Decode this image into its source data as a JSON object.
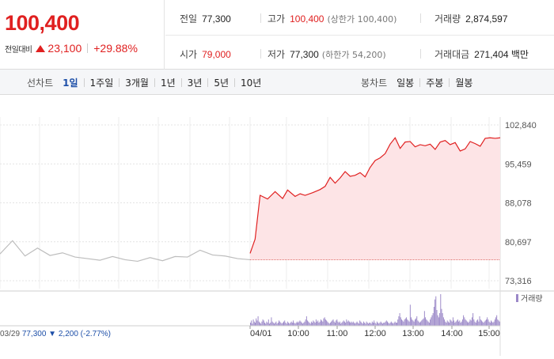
{
  "quote": {
    "price": "100,400",
    "diff_label": "전일대비",
    "diff_value": "23,100",
    "diff_percent": "+29.88%",
    "up_color": "#e02020"
  },
  "stats": {
    "prev_close_label": "전일",
    "prev_close": "77,300",
    "high_label": "고가",
    "high": "100,400",
    "upper_limit": "(상한가 100,400)",
    "volume_label": "거래량",
    "volume": "2,874,597",
    "open_label": "시가",
    "open": "79,000",
    "low_label": "저가",
    "low": "77,300",
    "lower_limit": "(하한가 54,200)",
    "amount_label": "거래대금",
    "amount": "271,404 백만"
  },
  "period_tabs": {
    "label": "선차트",
    "items": [
      "1일",
      "1주일",
      "3개월",
      "1년",
      "3년",
      "5년",
      "10년"
    ],
    "selected": "1일"
  },
  "candle_tabs": {
    "label": "봉차트",
    "items": [
      "일봉",
      "주봉",
      "월봉"
    ]
  },
  "chart_data": {
    "type": "area",
    "y_ticks": [
      "102,840",
      "95,459",
      "88,078",
      "80,697",
      "73,316"
    ],
    "ylim": [
      73316,
      102840
    ],
    "grid": true,
    "prev_day": {
      "date": "03/29",
      "close": "77,300",
      "change_arrow": "▼",
      "change": "2,200",
      "change_pct": "(-2.77%)",
      "x": [
        0,
        0.05,
        0.1,
        0.15,
        0.2,
        0.25,
        0.3,
        0.35,
        0.4,
        0.45,
        0.5,
        0.55,
        0.6,
        0.65,
        0.7,
        0.75,
        0.8,
        0.85,
        0.9,
        0.95,
        1
      ],
      "values": [
        78400,
        80900,
        78000,
        79500,
        78100,
        78600,
        77800,
        77500,
        77200,
        77900,
        77300,
        77000,
        77700,
        77100,
        77900,
        77800,
        79100,
        78200,
        78000,
        77500,
        77300
      ]
    },
    "today": {
      "x_ticks": [
        "04/01",
        "10:00",
        "11:00",
        "12:00",
        "13:00",
        "14:00",
        "15:00"
      ],
      "base_value": 77300,
      "x": [
        0,
        0.02,
        0.04,
        0.07,
        0.1,
        0.13,
        0.15,
        0.18,
        0.2,
        0.22,
        0.25,
        0.28,
        0.3,
        0.32,
        0.34,
        0.36,
        0.38,
        0.4,
        0.42,
        0.44,
        0.46,
        0.48,
        0.5,
        0.52,
        0.54,
        0.56,
        0.58,
        0.6,
        0.62,
        0.64,
        0.66,
        0.68,
        0.7,
        0.72,
        0.74,
        0.76,
        0.78,
        0.8,
        0.82,
        0.84,
        0.86,
        0.88,
        0.9,
        0.92,
        0.94,
        0.96,
        0.98,
        1
      ],
      "values": [
        78500,
        81200,
        89500,
        88800,
        90200,
        88900,
        90500,
        89300,
        89800,
        89500,
        90000,
        90600,
        91200,
        92900,
        91800,
        92800,
        94000,
        93100,
        93300,
        93800,
        93000,
        94800,
        96100,
        96600,
        97400,
        99200,
        100400,
        98400,
        99600,
        99700,
        98700,
        99100,
        98900,
        99200,
        98200,
        99600,
        99900,
        99100,
        99500,
        97900,
        98300,
        99700,
        99300,
        98800,
        100300,
        100400,
        100300,
        100400
      ]
    },
    "volume_legend": "거래량",
    "volume_color": "#9b88c8",
    "volume_bars": [
      3,
      5,
      2,
      6,
      4,
      3,
      7,
      5,
      9,
      4,
      3,
      2,
      4,
      6,
      5,
      3,
      2,
      4,
      3,
      6,
      2,
      3,
      8,
      4,
      3,
      2,
      3,
      4,
      2,
      3,
      5,
      4,
      3,
      2,
      3,
      4,
      5,
      3,
      2,
      4,
      3,
      2,
      3,
      4,
      3,
      5,
      3,
      2,
      3,
      4,
      3,
      4,
      5,
      4,
      3,
      2,
      3,
      4,
      6,
      9,
      5,
      4,
      3,
      2,
      4,
      3,
      5,
      4,
      3,
      6,
      4,
      5,
      3,
      4,
      6,
      5,
      4,
      7,
      8,
      6,
      5,
      4,
      3,
      2,
      3,
      4,
      5,
      6,
      4,
      3,
      5,
      6,
      4,
      3,
      4,
      2,
      3,
      4,
      5,
      4,
      3,
      6,
      4,
      5,
      4,
      3,
      4,
      3,
      4,
      3,
      2,
      3,
      4,
      3,
      2,
      5,
      4,
      3,
      2,
      4,
      3,
      2,
      4,
      3,
      2,
      3,
      3,
      2,
      4,
      3,
      5,
      3,
      2,
      4,
      3,
      2,
      3,
      4,
      3,
      2,
      3,
      3,
      4,
      5,
      4,
      3,
      2,
      3,
      4,
      3,
      2,
      3,
      4,
      3,
      3,
      6,
      9,
      12,
      8,
      6,
      5,
      4,
      6,
      7,
      8,
      6,
      5,
      4,
      20,
      8,
      6,
      5,
      4,
      6,
      7,
      9,
      5,
      4,
      3,
      4,
      5,
      6,
      7,
      14,
      8,
      6,
      5,
      4,
      3,
      6,
      8,
      10,
      12,
      18,
      25,
      28,
      15,
      10,
      8,
      12,
      30,
      16,
      12,
      8,
      6,
      4,
      3,
      5,
      4,
      3,
      6,
      5,
      4,
      8,
      5,
      3,
      4,
      5,
      6,
      4,
      5,
      3,
      4,
      6,
      10,
      8,
      6,
      5,
      4,
      3,
      4,
      6,
      5,
      8,
      12,
      6,
      4,
      3,
      5,
      6,
      4,
      9,
      6,
      5,
      4,
      3,
      4,
      5,
      6,
      8,
      6,
      4,
      3,
      5,
      4,
      3,
      4,
      6,
      8,
      10,
      6,
      5,
      4
    ]
  }
}
